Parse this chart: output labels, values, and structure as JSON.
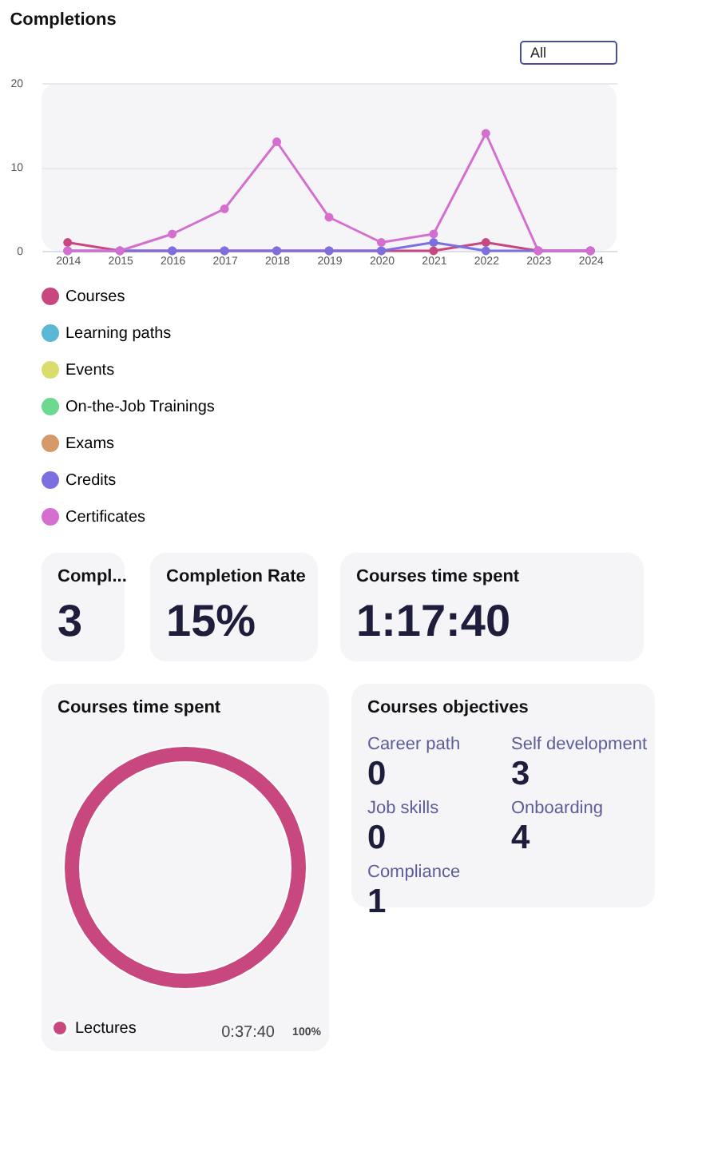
{
  "chart_data": [
    {
      "type": "line",
      "title": "Completions",
      "annotations": [
        "All"
      ],
      "categories": [
        "2014",
        "2015",
        "2016",
        "2017",
        "2018",
        "2019",
        "2020",
        "2021",
        "2022",
        "2023",
        "2024"
      ],
      "ylim": [
        0,
        20
      ],
      "yticks": [
        0,
        10,
        20
      ],
      "grid": "y",
      "legend": "bottom",
      "marker": "circle",
      "series": [
        {
          "name": "Courses",
          "color": "#c9477f",
          "values": [
            1,
            0,
            0,
            0,
            0,
            0,
            0,
            0,
            1,
            0,
            0
          ]
        },
        {
          "name": "Learning paths",
          "color": "#5bb8d4",
          "values": [
            null,
            null,
            null,
            null,
            null,
            null,
            null,
            null,
            null,
            null,
            null
          ]
        },
        {
          "name": "Events",
          "color": "#d9dd6b",
          "values": [
            null,
            null,
            null,
            null,
            null,
            null,
            null,
            null,
            null,
            null,
            null
          ]
        },
        {
          "name": "On-the-Job Trainings",
          "color": "#6dd98f",
          "values": [
            null,
            null,
            null,
            null,
            null,
            null,
            null,
            null,
            null,
            null,
            null
          ]
        },
        {
          "name": "Exams",
          "color": "#d49a6a",
          "values": [
            null,
            null,
            null,
            null,
            null,
            null,
            null,
            null,
            null,
            null,
            null
          ]
        },
        {
          "name": "Credits",
          "color": "#7c6fe0",
          "values": [
            0,
            0,
            0,
            0,
            0,
            0,
            0,
            1,
            0,
            0,
            0
          ]
        },
        {
          "name": "Certificates",
          "color": "#d56fcf",
          "values": [
            0,
            0,
            2,
            5,
            13,
            4,
            1,
            2,
            14,
            0,
            0
          ]
        }
      ]
    },
    {
      "type": "other",
      "title": "Compl...",
      "annotations": [
        "3"
      ]
    },
    {
      "type": "other",
      "title": "Completion Rate",
      "annotations": [
        "15%"
      ]
    },
    {
      "type": "other",
      "title": "Courses time spent",
      "annotations": [
        "1:17:40"
      ]
    },
    {
      "type": "donut",
      "title": "Courses time spent",
      "categories": [
        "Lectures"
      ],
      "values": [
        100
      ],
      "colors": [
        "#c9477f"
      ],
      "annotations": [
        "0:37:40",
        "100%"
      ],
      "legend": "bottom left"
    },
    {
      "type": "other",
      "title": "Courses objectives",
      "categories": [
        "Career path",
        "Self development",
        "Job skills",
        "Onboarding",
        "Compliance"
      ],
      "values": [
        0,
        3,
        0,
        4,
        1
      ],
      "data_labels": true
    }
  ]
}
